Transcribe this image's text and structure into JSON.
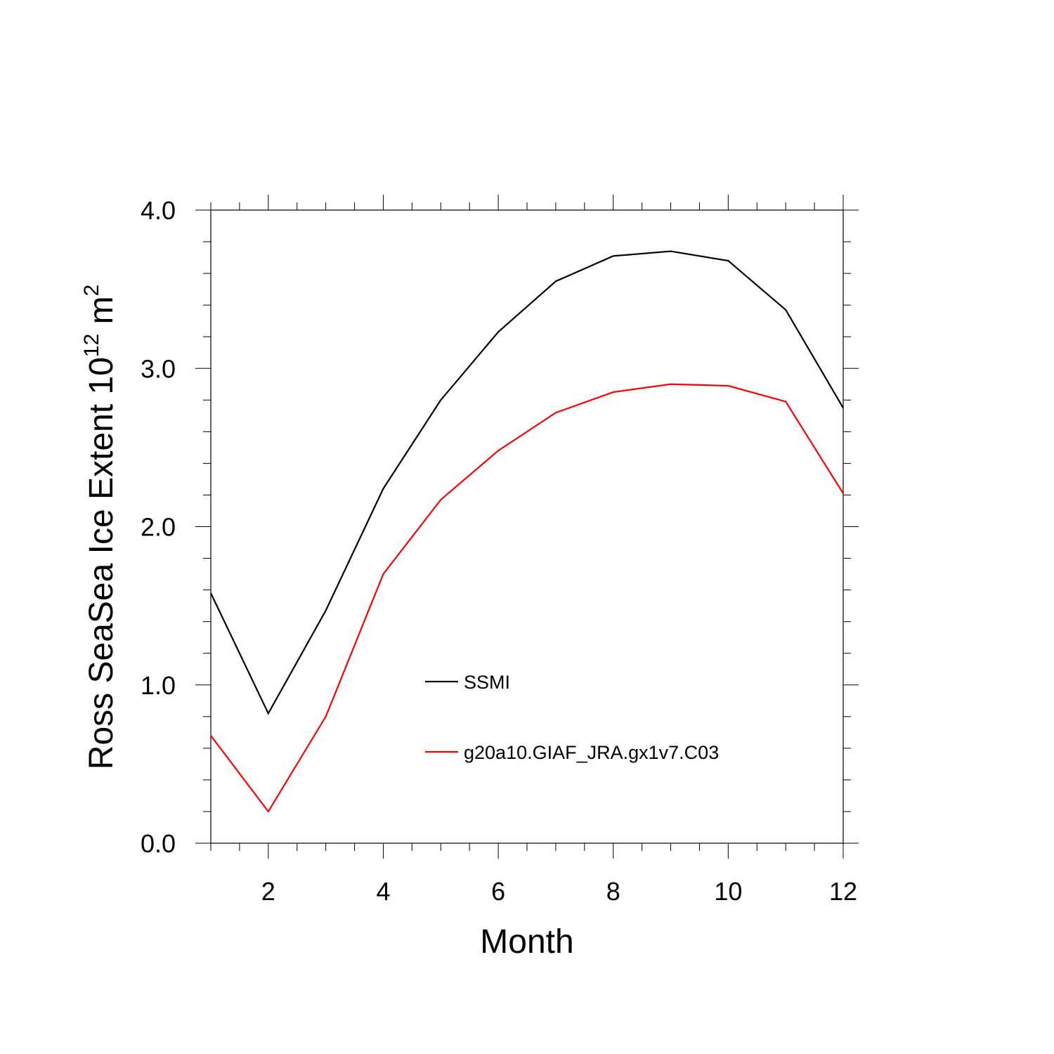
{
  "chart_data": {
    "type": "line",
    "xlabel": "Month",
    "ylabel_parts": {
      "main": "Ross SeaSea Ice Extent 10",
      "exp1": "12",
      "unit": " m",
      "exp2": "2"
    },
    "xlim": [
      1,
      12
    ],
    "ylim": [
      0,
      4
    ],
    "x_ticks": [
      2,
      4,
      6,
      8,
      10,
      12
    ],
    "x_tick_labels": [
      "2",
      "4",
      "6",
      "8",
      "10",
      "12"
    ],
    "y_ticks": [
      0,
      1,
      2,
      3,
      4
    ],
    "y_tick_labels": [
      "0.0",
      "1.0",
      "2.0",
      "3.0",
      "4.0"
    ],
    "grid": false,
    "legend_position": "inside-center",
    "x": [
      1,
      2,
      3,
      4,
      5,
      6,
      7,
      8,
      9,
      10,
      11,
      12
    ],
    "series": [
      {
        "name": "SSMI",
        "color": "#000000",
        "values": [
          1.58,
          0.82,
          1.47,
          2.24,
          2.8,
          3.23,
          3.55,
          3.71,
          3.74,
          3.68,
          3.37,
          2.75
        ]
      },
      {
        "name": "g20a10.GIAF_JRA.gx1v7.C03",
        "color": "#ff0000",
        "values": [
          0.68,
          0.2,
          0.8,
          1.7,
          2.17,
          2.48,
          2.72,
          2.85,
          2.9,
          2.89,
          2.79,
          2.21
        ]
      }
    ]
  }
}
